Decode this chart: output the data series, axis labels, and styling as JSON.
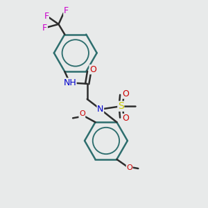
{
  "bg_color": "#e8eaea",
  "ring_color": "#2d6e6e",
  "bond_color": "#2d2d2d",
  "atom_colors": {
    "N": "#0000cc",
    "O": "#cc0000",
    "S": "#cccc00",
    "F": "#cc00cc"
  },
  "bond_width": 1.8,
  "figsize": [
    3.0,
    3.0
  ],
  "dpi": 100
}
